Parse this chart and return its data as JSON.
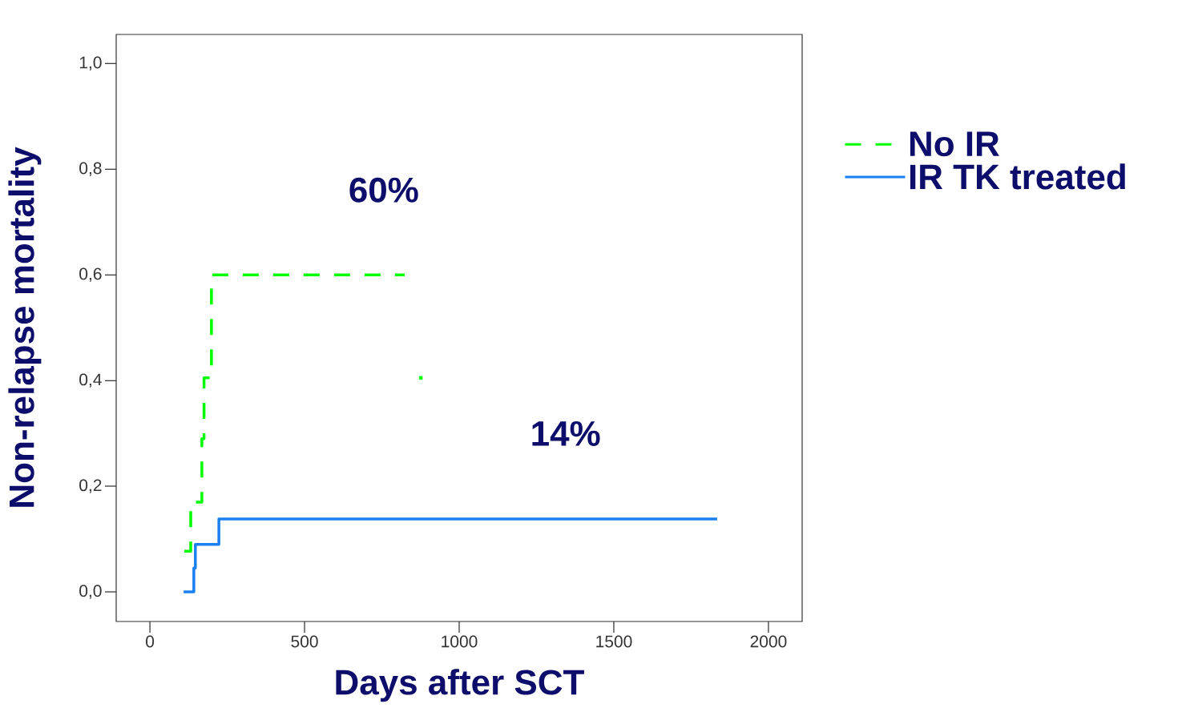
{
  "chart_data": {
    "type": "step",
    "xlabel": "Days after SCT",
    "ylabel": "Non-relapse mortality",
    "xlim": [
      -109,
      2109
    ],
    "ylim": [
      -0.056,
      1.055
    ],
    "xticks": [
      0,
      500,
      1000,
      1500,
      2000
    ],
    "yticks": [
      {
        "value": 0,
        "label": "0,0"
      },
      {
        "value": 0.2,
        "label": "0,2"
      },
      {
        "value": 0.4,
        "label": "0,4"
      },
      {
        "value": 0.6,
        "label": "0,6"
      },
      {
        "value": 0.8,
        "label": "0,8"
      },
      {
        "value": 1.0,
        "label": "1,0"
      }
    ],
    "legend": "right",
    "grid": false,
    "series": [
      {
        "name": "No IR",
        "color": "#00ff00",
        "line_style": "dashed",
        "x": [
          111,
          132,
          168,
          175,
          199,
          824
        ],
        "values": [
          0.077,
          0.17,
          0.29,
          0.405,
          0.6,
          0.6
        ]
      },
      {
        "name": "IR TK treated",
        "color": "#1a80f0",
        "line_style": "solid",
        "x": [
          109,
          142,
          147,
          223,
          1834
        ],
        "values": [
          0,
          0.045,
          0.09,
          0.138,
          0.138
        ]
      },
      {
        "type": "scatter",
        "color": "#00ff00",
        "x": [
          876
        ],
        "values": [
          0.405
        ]
      }
    ],
    "annotations": [
      "60%",
      "14%"
    ]
  }
}
